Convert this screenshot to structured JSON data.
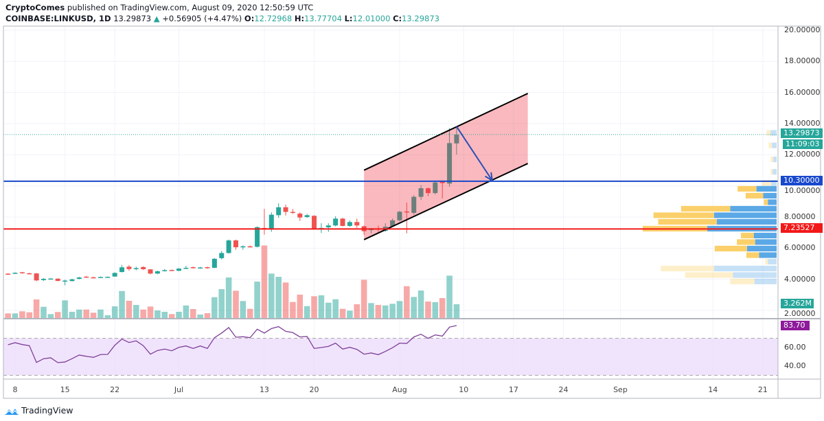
{
  "header": {
    "author": "CryptoComes",
    "published": "published on TradingView.com, August 09, 2020 12:50:59 UTC",
    "symbol": "COINBASE:LINKUSD, 1D",
    "last": "13.29873",
    "change": "+0.56905 (+4.47%)",
    "o_label": "O:",
    "o": "12.72968",
    "h_label": "H:",
    "h": "13.77704",
    "l_label": "L:",
    "l": "12.01000",
    "c_label": "C:",
    "c": "13.29873"
  },
  "price_axis": [
    "20.00000",
    "18.00000",
    "16.00000",
    "14.00000",
    "12.00000",
    "10.00000",
    "8.00000",
    "6.00000",
    "4.00000",
    "2.00000"
  ],
  "tags": {
    "last_price": "13.29873",
    "countdown": "11:09:03",
    "blue_level": "10.30000",
    "red_level": "7.23527",
    "volume": "3.262M",
    "rsi": "83.70"
  },
  "rsi_axis": [
    "60.00",
    "40.00"
  ],
  "time_axis": [
    {
      "label": "8",
      "date": "2020-06-08"
    },
    {
      "label": "15",
      "date": "2020-06-15"
    },
    {
      "label": "22",
      "date": "2020-06-22"
    },
    {
      "label": "Jul",
      "date": "2020-07-01"
    },
    {
      "label": "13",
      "date": "2020-07-13"
    },
    {
      "label": "20",
      "date": "2020-07-20"
    },
    {
      "label": "Aug",
      "date": "2020-08-01"
    },
    {
      "label": "10",
      "date": "2020-08-10"
    },
    {
      "label": "17",
      "date": "2020-08-17"
    },
    {
      "label": "24",
      "date": "2020-08-24"
    },
    {
      "label": "Sep",
      "date": "2020-09-01"
    },
    {
      "label": "14",
      "date": "2020-09-14"
    },
    {
      "label": "21",
      "date": "2020-09-21"
    }
  ],
  "footer": {
    "brand": "TradingView"
  },
  "colors": {
    "up": "#26a69a",
    "down": "#ef5350",
    "blue_line": "#1848cc",
    "red_line": "#f21818",
    "channel_fill": "#f23645",
    "rsi": "#7e3f98",
    "rsi_band": "#e9d8fb",
    "vp_up": "#5ba8e6",
    "vp_down": "#fbd06a"
  },
  "chart_data": {
    "type": "candlestick",
    "symbol": "COINBASE:LINKUSD",
    "interval": "1D",
    "ylim": [
      1.5,
      20.2
    ],
    "columns": [
      "date",
      "open",
      "high",
      "low",
      "close",
      "volume_m"
    ],
    "candles": [
      [
        "2020-06-07",
        4.36,
        4.4,
        4.3,
        4.33,
        1.09
      ],
      [
        "2020-06-08",
        4.38,
        4.45,
        4.35,
        4.42,
        1.09
      ],
      [
        "2020-06-09",
        4.45,
        4.48,
        4.38,
        4.41,
        1.58
      ],
      [
        "2020-06-10",
        4.39,
        4.42,
        4.34,
        4.36,
        1.35
      ],
      [
        "2020-06-11",
        4.38,
        4.4,
        3.88,
        3.93,
        4.4
      ],
      [
        "2020-06-12",
        3.95,
        4.08,
        3.9,
        4.03,
        2.66
      ],
      [
        "2020-06-13",
        4.03,
        4.08,
        3.99,
        4.05,
        0.93
      ],
      [
        "2020-06-14",
        4.04,
        4.07,
        3.87,
        3.9,
        1.42
      ],
      [
        "2020-06-15",
        3.9,
        3.98,
        3.62,
        3.92,
        4.19
      ],
      [
        "2020-06-16",
        3.89,
        4.04,
        3.86,
        4.0,
        1.47
      ],
      [
        "2020-06-17",
        4.03,
        4.16,
        4.0,
        4.12,
        2.0
      ],
      [
        "2020-06-18",
        4.17,
        4.22,
        4.11,
        4.14,
        2.0
      ],
      [
        "2020-06-19",
        4.13,
        4.17,
        4.07,
        4.1,
        1.26
      ],
      [
        "2020-06-20",
        4.13,
        4.18,
        4.1,
        4.15,
        2.0
      ],
      [
        "2020-06-21",
        4.15,
        4.18,
        4.13,
        4.16,
        0.65
      ],
      [
        "2020-06-22",
        4.18,
        4.45,
        4.16,
        4.41,
        2.77
      ],
      [
        "2020-06-23",
        4.47,
        4.92,
        4.44,
        4.77,
        6.41
      ],
      [
        "2020-06-24",
        4.81,
        4.92,
        4.55,
        4.66,
        4.08
      ],
      [
        "2020-06-25",
        4.66,
        4.82,
        4.58,
        4.72,
        3.1
      ],
      [
        "2020-06-26",
        4.79,
        4.84,
        4.6,
        4.65,
        2.0
      ],
      [
        "2020-06-27",
        4.64,
        4.66,
        4.32,
        4.37,
        2.72
      ],
      [
        "2020-06-28",
        4.37,
        4.56,
        4.33,
        4.52,
        1.79
      ],
      [
        "2020-06-29",
        4.57,
        4.66,
        4.5,
        4.59,
        1.47
      ],
      [
        "2020-06-30",
        4.6,
        4.63,
        4.54,
        4.57,
        0.93
      ],
      [
        "2020-07-01",
        4.55,
        4.72,
        4.52,
        4.69,
        1.47
      ],
      [
        "2020-07-02",
        4.7,
        4.86,
        4.66,
        4.74,
        2.98
      ],
      [
        "2020-07-03",
        4.78,
        4.82,
        4.7,
        4.74,
        2.12
      ],
      [
        "2020-07-04",
        4.74,
        4.8,
        4.7,
        4.76,
        0.82
      ],
      [
        "2020-07-05",
        4.78,
        4.81,
        4.68,
        4.74,
        1.14
      ],
      [
        "2020-07-06",
        4.74,
        5.36,
        4.72,
        5.32,
        4.94
      ],
      [
        "2020-07-07",
        5.36,
        5.82,
        5.28,
        5.69,
        6.85
      ],
      [
        "2020-07-08",
        5.69,
        6.56,
        5.66,
        6.5,
        9.62
      ],
      [
        "2020-07-09",
        6.5,
        6.55,
        5.9,
        6.06,
        6.47
      ],
      [
        "2020-07-10",
        6.08,
        6.18,
        5.9,
        6.12,
        4.03
      ],
      [
        "2020-07-11",
        6.12,
        6.17,
        6.05,
        6.1,
        2.17
      ],
      [
        "2020-07-12",
        6.09,
        7.4,
        6.05,
        7.35,
        8.64
      ],
      [
        "2020-07-13",
        7.3,
        8.53,
        6.87,
        7.25,
        17.23
      ],
      [
        "2020-07-14",
        7.24,
        8.3,
        7.05,
        8.15,
        10.55
      ],
      [
        "2020-07-15",
        8.12,
        8.88,
        7.95,
        8.63,
        9.78
      ],
      [
        "2020-07-16",
        8.63,
        8.8,
        8.1,
        8.33,
        8.43
      ],
      [
        "2020-07-17",
        8.33,
        8.52,
        8.2,
        8.3,
        3.8
      ],
      [
        "2020-07-18",
        8.22,
        8.3,
        7.75,
        7.97,
        5.54
      ],
      [
        "2020-07-19",
        8.0,
        8.2,
        7.95,
        8.12,
        2.82
      ],
      [
        "2020-07-20",
        8.08,
        8.12,
        7.2,
        7.24,
        5.17
      ],
      [
        "2020-07-21",
        7.26,
        7.6,
        6.98,
        7.3,
        5.38
      ],
      [
        "2020-07-22",
        7.34,
        7.6,
        7.05,
        7.46,
        3.63
      ],
      [
        "2020-07-23",
        7.46,
        8.05,
        7.4,
        7.9,
        4.45
      ],
      [
        "2020-07-24",
        7.9,
        7.95,
        7.4,
        7.43,
        2.17
      ],
      [
        "2020-07-25",
        7.43,
        7.78,
        7.38,
        7.68,
        1.74
      ],
      [
        "2020-07-26",
        7.68,
        7.9,
        7.3,
        7.46,
        3.26
      ],
      [
        "2020-07-27",
        7.41,
        7.45,
        6.85,
        7.09,
        9.08
      ],
      [
        "2020-07-28",
        7.19,
        7.3,
        6.95,
        7.23,
        3.54
      ],
      [
        "2020-07-29",
        7.26,
        7.45,
        7.05,
        7.22,
        3.1
      ],
      [
        "2020-07-30",
        7.12,
        7.6,
        7.05,
        7.38,
        2.98
      ],
      [
        "2020-07-31",
        7.41,
        7.9,
        7.38,
        7.79,
        3.37
      ],
      [
        "2020-08-01",
        7.79,
        8.4,
        7.72,
        8.34,
        4.03
      ],
      [
        "2020-08-02",
        8.36,
        8.93,
        6.95,
        8.32,
        7.55
      ],
      [
        "2020-08-03",
        8.27,
        9.4,
        8.15,
        9.3,
        5.0
      ],
      [
        "2020-08-04",
        9.3,
        10.05,
        9.1,
        9.85,
        6.52
      ],
      [
        "2020-08-05",
        9.85,
        9.9,
        9.35,
        9.54,
        3.91
      ],
      [
        "2020-08-06",
        9.54,
        10.35,
        9.45,
        10.22,
        3.75
      ],
      [
        "2020-08-07",
        10.28,
        10.35,
        9.19,
        10.18,
        4.73
      ],
      [
        "2020-08-08",
        10.15,
        13.71,
        9.95,
        12.75,
        10.06
      ],
      [
        "2020-08-09",
        12.72968,
        13.77704,
        12.01,
        13.29873,
        3.262
      ]
    ],
    "rsi": {
      "band": [
        30,
        70
      ],
      "ylim": [
        25,
        90
      ],
      "values": [
        63,
        65.2,
        63.2,
        62,
        43.9,
        47.9,
        48.9,
        43.7,
        44.4,
        48,
        51.9,
        50.5,
        49.4,
        52.4,
        52.6,
        62.4,
        69.1,
        65.4,
        67.2,
        62,
        52.8,
        56.8,
        58.3,
        56.5,
        60.2,
        61.7,
        59,
        61.7,
        59,
        70.6,
        75.6,
        81.5,
        71.1,
        71.6,
        70.6,
        79.8,
        75.6,
        80.5,
        82.5,
        77.5,
        76.1,
        71.4,
        71.9,
        59,
        60,
        61.2,
        64.7,
        58.3,
        60.2,
        58,
        52.8,
        54.1,
        52.3,
        55.8,
        59.8,
        64.7,
        64.4,
        71.4,
        74.3,
        69.9,
        73.6,
        72.3,
        82,
        83.7
      ]
    },
    "horizontal_lines": [
      {
        "price": 10.3,
        "color": "#1848cc"
      },
      {
        "price": 7.23527,
        "color": "#f21818"
      },
      {
        "price": 13.29873,
        "color": "#26a69a",
        "style": "dotted"
      }
    ],
    "channel": {
      "upper": [
        [
          "2020-07-27",
          11.01
        ],
        [
          "2020-08-19",
          15.94
        ]
      ],
      "lower": [
        [
          "2020-07-27",
          6.55
        ],
        [
          "2020-08-19",
          11.44
        ]
      ]
    },
    "arrow": {
      "from": [
        "2020-08-09",
        13.81
      ],
      "to": [
        "2020-08-14",
        10.35
      ],
      "color": "#2a4fb8"
    },
    "volume_profile": [
      {
        "price": 10.19,
        "up": 8,
        "down": 14,
        "value_area": false
      },
      {
        "price": 9.81,
        "up": 30,
        "down": 28,
        "value_area": true
      },
      {
        "price": 9.37,
        "up": 20,
        "down": 26,
        "value_area": true
      },
      {
        "price": 8.95,
        "up": 13,
        "down": 6,
        "value_area": true
      },
      {
        "price": 8.53,
        "up": 69,
        "down": 73,
        "value_area": true
      },
      {
        "price": 8.11,
        "up": 93,
        "down": 90,
        "value_area": true
      },
      {
        "price": 7.69,
        "up": 89,
        "down": 87,
        "value_area": true
      },
      {
        "price": 7.25,
        "up": 103,
        "down": 96,
        "value_area": true
      },
      {
        "price": 6.81,
        "up": 34,
        "down": 19,
        "value_area": true
      },
      {
        "price": 6.39,
        "up": 32,
        "down": 27,
        "value_area": true
      },
      {
        "price": 5.97,
        "up": 44,
        "down": 48,
        "value_area": true
      },
      {
        "price": 5.55,
        "up": 26,
        "down": 19,
        "value_area": true
      },
      {
        "price": 5.13,
        "up": 13,
        "down": 4,
        "value_area": false
      },
      {
        "price": 4.69,
        "up": 93,
        "down": 79,
        "value_area": false
      },
      {
        "price": 4.27,
        "up": 65,
        "down": 71,
        "value_area": false
      },
      {
        "price": 3.86,
        "up": 33,
        "down": 36,
        "value_area": false
      },
      {
        "price": 10.9,
        "up": 6,
        "down": 3,
        "value_area": false
      },
      {
        "price": 11.7,
        "up": 5,
        "down": 4,
        "value_area": false
      },
      {
        "price": 12.6,
        "up": 7,
        "down": 5,
        "value_area": false
      },
      {
        "price": 13.4,
        "up": 9,
        "down": 6,
        "value_area": false
      }
    ]
  }
}
